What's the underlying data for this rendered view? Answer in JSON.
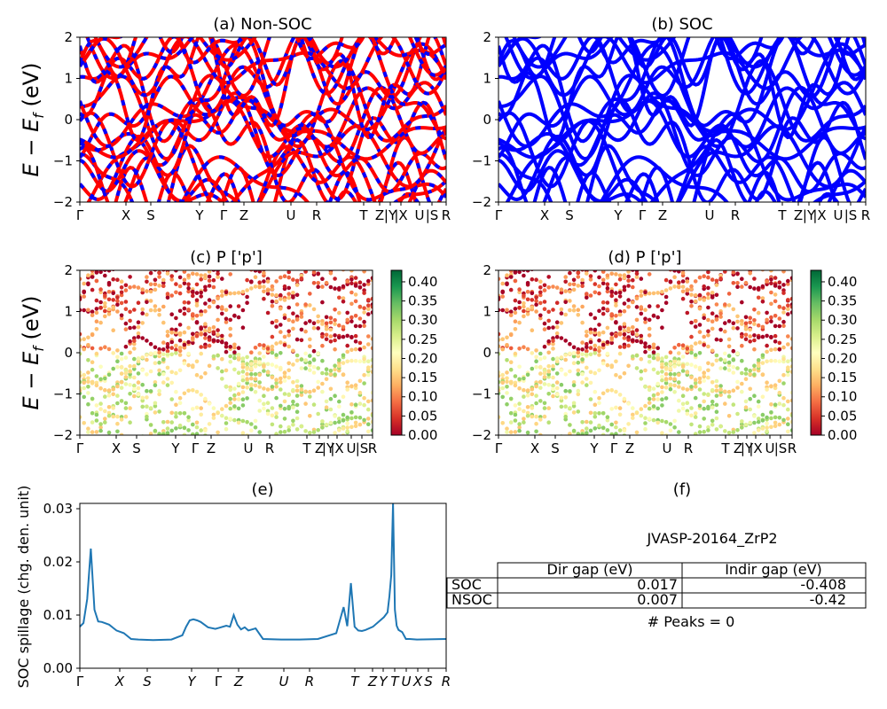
{
  "figure": {
    "ylabel_main": "E − E",
    "ylabel_sub": "f",
    "ylabel_unit": " (eV)"
  },
  "panels": {
    "a": {
      "title": "(a) Non-SOC"
    },
    "b": {
      "title": "(b) SOC"
    },
    "c": {
      "title": "(c)  P ['p']"
    },
    "d": {
      "title": "(d) P ['p']"
    },
    "e": {
      "title": "(e)",
      "ylabel": "SOC spillage (chg. den. unit)"
    },
    "f": {
      "title": "(f)"
    }
  },
  "band_axis": {
    "ylim": [
      -2,
      2
    ],
    "yticks": [
      "2",
      "1",
      "0",
      "−1",
      "−2"
    ],
    "kpoints": [
      "Γ",
      "X",
      "S",
      "Y",
      "Γ",
      "Z",
      "U",
      "R",
      "T",
      "Z",
      "|Y",
      "|X",
      "U",
      "|S",
      "R"
    ],
    "kpoints_cd": [
      "Γ",
      "X",
      "S",
      "Y",
      "Γ",
      "Z",
      "U",
      "R",
      "T",
      "Z",
      "|Y",
      "|X",
      "U",
      "|S",
      "R"
    ],
    "colors": {
      "nonsoc_a": "#ff0000",
      "nonsoc_b": "#0000ff",
      "soc": "#0000ff"
    }
  },
  "colorbar": {
    "ticks": [
      "0.40",
      "0.35",
      "0.30",
      "0.25",
      "0.20",
      "0.15",
      "0.10",
      "0.05",
      "0.00"
    ],
    "range": [
      0.0,
      0.43
    ],
    "cmap": "RdYlGn"
  },
  "chart_data": [
    {
      "panel": "e",
      "type": "line",
      "title": "(e)",
      "ylabel": "SOC spillage (chg. den. unit)",
      "ylim": [
        0,
        0.031
      ],
      "yticks": [
        "0.00",
        "0.01",
        "0.02",
        "0.03"
      ],
      "xticks": [
        "Γ",
        "X",
        "S",
        "Y",
        "Γ",
        "Z",
        "U",
        "R",
        "T",
        "Z",
        "Y",
        "T",
        "U",
        "X",
        "S",
        "R"
      ],
      "color": "#1f77b4",
      "x": [
        0,
        0.01,
        0.02,
        0.03,
        0.04,
        0.05,
        0.06,
        0.08,
        0.1,
        0.12,
        0.14,
        0.16,
        0.2,
        0.25,
        0.28,
        0.29,
        0.3,
        0.31,
        0.32,
        0.33,
        0.35,
        0.37,
        0.38,
        0.4,
        0.41,
        0.42,
        0.43,
        0.44,
        0.45,
        0.46,
        0.48,
        0.5,
        0.55,
        0.6,
        0.65,
        0.7,
        0.72,
        0.73,
        0.74,
        0.75,
        0.76,
        0.77,
        0.78,
        0.8,
        0.82,
        0.83,
        0.84,
        0.845,
        0.85,
        0.855,
        0.86,
        0.865,
        0.87,
        0.88,
        0.89,
        0.9,
        0.92,
        1.0
      ],
      "y": [
        0.0078,
        0.0085,
        0.013,
        0.0225,
        0.011,
        0.0088,
        0.0087,
        0.0082,
        0.0071,
        0.0066,
        0.0055,
        0.0054,
        0.0053,
        0.0054,
        0.0062,
        0.0078,
        0.009,
        0.0092,
        0.009,
        0.0087,
        0.0077,
        0.0074,
        0.0076,
        0.008,
        0.0078,
        0.01,
        0.0082,
        0.0073,
        0.0077,
        0.0071,
        0.0075,
        0.0055,
        0.0054,
        0.0054,
        0.0055,
        0.0066,
        0.0115,
        0.0079,
        0.016,
        0.0078,
        0.0071,
        0.007,
        0.0072,
        0.0078,
        0.009,
        0.0096,
        0.0105,
        0.0135,
        0.0175,
        0.031,
        0.011,
        0.008,
        0.0072,
        0.0068,
        0.0055,
        0.0055,
        0.0054,
        0.0055
      ]
    }
  ],
  "info": {
    "title": "JVASP-20164_ZrP2",
    "columns": [
      "",
      "Dir gap (eV)",
      "Indir gap (eV)"
    ],
    "rows": [
      {
        "label": "SOC",
        "dir": "0.017",
        "indir": "-0.408"
      },
      {
        "label": "NSOC",
        "dir": "0.007",
        "indir": "-0.42"
      }
    ],
    "peaks": "# Peaks = 0"
  }
}
